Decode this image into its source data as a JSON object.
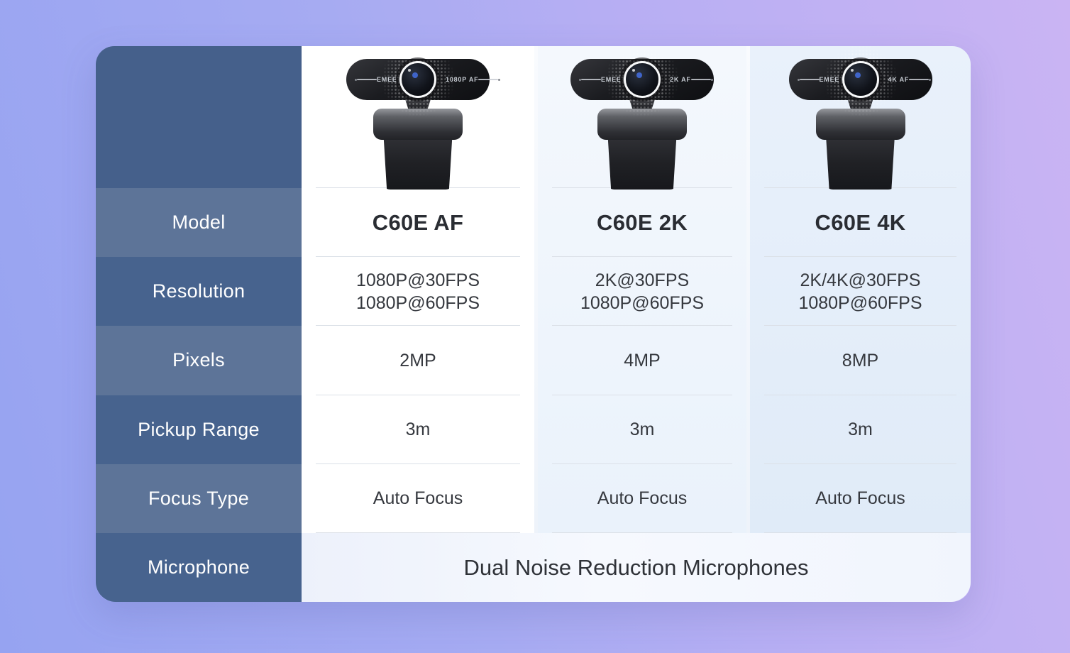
{
  "theme": {
    "bg_gradient_start": "#96A3F1",
    "bg_gradient_end": "#CAB4F3",
    "label_row_light": "#5D7498",
    "label_row_dark": "#47638E",
    "label_header_bg": "#45608B",
    "column_af_bg": "#FFFFFF",
    "column_2k_bg": "#EAF2FB",
    "column_4k_bg": "#E2EDFA",
    "microphone_row_bg": "#F2F6FD",
    "label_text_color": "#FFFFFF",
    "value_text_color": "#35383E"
  },
  "table": {
    "row_labels": {
      "model": "Model",
      "resolution": "Resolution",
      "pixels": "Pixels",
      "pickup_range": "Pickup Range",
      "focus_type": "Focus Type",
      "microphone": "Microphone"
    },
    "products": [
      {
        "model": "C60E AF",
        "cam_brand": "EMEET",
        "cam_badge": "1080P AF",
        "resolution_line1": "1080P@30FPS",
        "resolution_line2": "1080P@60FPS",
        "pixels": "2MP",
        "pickup_range": "3m",
        "focus_type": "Auto Focus"
      },
      {
        "model": "C60E 2K",
        "cam_brand": "EMEET",
        "cam_badge": "2K AF",
        "resolution_line1": "2K@30FPS",
        "resolution_line2": "1080P@60FPS",
        "pixels": "4MP",
        "pickup_range": "3m",
        "focus_type": "Auto Focus"
      },
      {
        "model": "C60E 4K",
        "cam_brand": "EMEET",
        "cam_badge": "4K AF",
        "resolution_line1": "2K/4K@30FPS",
        "resolution_line2": "1080P@60FPS",
        "pixels": "8MP",
        "pickup_range": "3m",
        "focus_type": "Auto Focus"
      }
    ],
    "microphone_shared_value": "Dual Noise Reduction Microphones"
  },
  "chart_data": {
    "type": "table",
    "columns": [
      "",
      "C60E AF",
      "C60E 2K",
      "C60E 4K"
    ],
    "rows": [
      [
        "Model",
        "C60E AF",
        "C60E 2K",
        "C60E 4K"
      ],
      [
        "Resolution",
        "1080P@30FPS 1080P@60FPS",
        "2K@30FPS 1080P@60FPS",
        "2K/4K@30FPS 1080P@60FPS"
      ],
      [
        "Pixels",
        "2MP",
        "4MP",
        "8MP"
      ],
      [
        "Pickup Range",
        "3m",
        "3m",
        "3m"
      ],
      [
        "Focus Type",
        "Auto Focus",
        "Auto Focus",
        "Auto Focus"
      ],
      [
        "Microphone",
        "Dual Noise Reduction Microphones",
        "Dual Noise Reduction Microphones",
        "Dual Noise Reduction Microphones"
      ]
    ]
  }
}
